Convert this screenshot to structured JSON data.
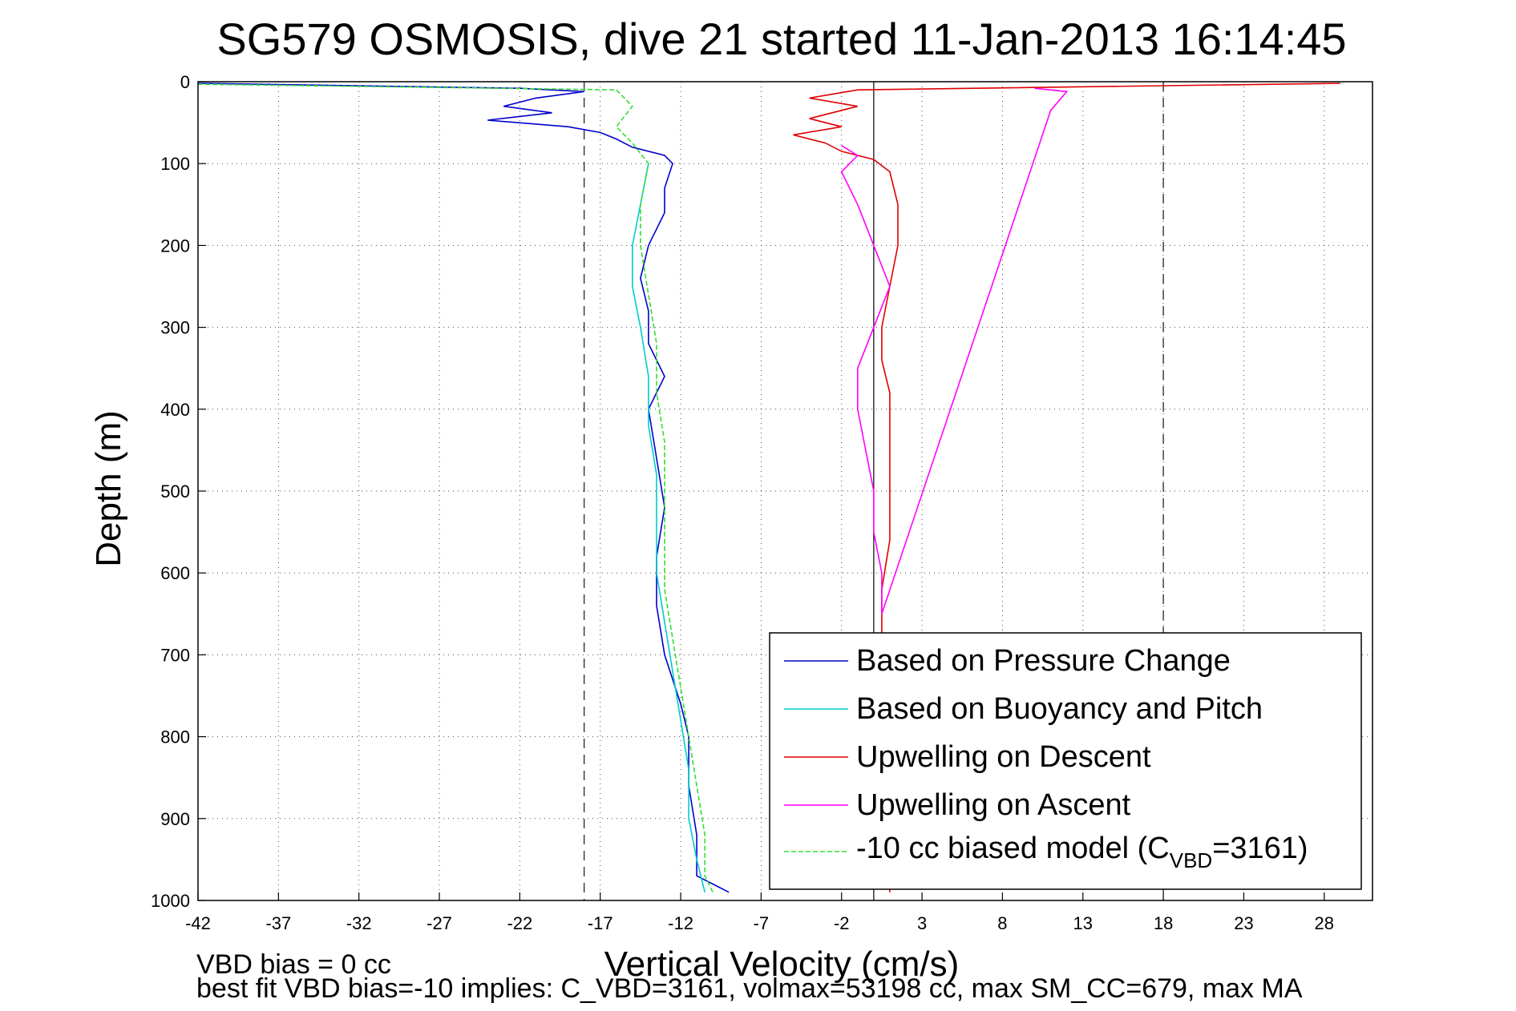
{
  "chart_data": {
    "type": "line",
    "title": "SG579 OSMOSIS, dive 21 started 11-Jan-2013 16:14:45",
    "xlabel": "Vertical Velocity (cm/s)",
    "ylabel": "Depth (m)",
    "xlim": [
      -42,
      31
    ],
    "ylim": [
      0,
      1000
    ],
    "y_reversed": true,
    "xticks": [
      -42,
      -37,
      -32,
      -27,
      -22,
      -17,
      -12,
      -7,
      -2,
      3,
      8,
      13,
      18,
      23,
      28
    ],
    "yticks": [
      0,
      100,
      200,
      300,
      400,
      500,
      600,
      700,
      800,
      900,
      1000
    ],
    "grid": "dotted",
    "legend_position": "bottom-right",
    "reference_lines": {
      "dashed_x": [
        -18,
        18
      ],
      "solid_x": [
        0
      ]
    },
    "series": [
      {
        "name": "Based on Pressure Change",
        "color": "#0000cc",
        "points": [
          [
            -42,
            2
          ],
          [
            -22,
            8
          ],
          [
            -18,
            12
          ],
          [
            -21,
            20
          ],
          [
            -23,
            30
          ],
          [
            -20,
            38
          ],
          [
            -24,
            47
          ],
          [
            -19,
            55
          ],
          [
            -17,
            62
          ],
          [
            -16,
            70
          ],
          [
            -15,
            80
          ],
          [
            -13,
            90
          ],
          [
            -12.5,
            100
          ],
          [
            -13,
            130
          ],
          [
            -13,
            160
          ],
          [
            -14,
            200
          ],
          [
            -14.5,
            240
          ],
          [
            -14,
            280
          ],
          [
            -14,
            320
          ],
          [
            -13,
            360
          ],
          [
            -14,
            400
          ],
          [
            -13.5,
            460
          ],
          [
            -13,
            520
          ],
          [
            -13.5,
            580
          ],
          [
            -13.5,
            640
          ],
          [
            -13,
            700
          ],
          [
            -12,
            760
          ],
          [
            -11.5,
            800
          ],
          [
            -11.5,
            860
          ],
          [
            -11,
            920
          ],
          [
            -11,
            970
          ],
          [
            -9,
            990
          ]
        ]
      },
      {
        "name": "Based on Buoyancy and Pitch",
        "color": "#00cccc",
        "points": [
          [
            -14,
            100
          ],
          [
            -14.5,
            150
          ],
          [
            -15,
            200
          ],
          [
            -15,
            250
          ],
          [
            -14.5,
            300
          ],
          [
            -14,
            360
          ],
          [
            -14,
            420
          ],
          [
            -13.5,
            480
          ],
          [
            -13.5,
            540
          ],
          [
            -13.5,
            600
          ],
          [
            -13,
            660
          ],
          [
            -12.5,
            720
          ],
          [
            -12,
            780
          ],
          [
            -11.5,
            840
          ],
          [
            -11.5,
            900
          ],
          [
            -11,
            950
          ],
          [
            -10.5,
            990
          ]
        ]
      },
      {
        "name": "Upwelling on Descent",
        "color": "#e00000",
        "points": [
          [
            29,
            2
          ],
          [
            -1,
            10
          ],
          [
            -4,
            20
          ],
          [
            -1,
            30
          ],
          [
            -4,
            45
          ],
          [
            -2,
            55
          ],
          [
            -5,
            65
          ],
          [
            -3,
            75
          ],
          [
            -2,
            85
          ],
          [
            0,
            95
          ],
          [
            1,
            110
          ],
          [
            1.5,
            150
          ],
          [
            1.5,
            200
          ],
          [
            1,
            250
          ],
          [
            0.5,
            300
          ],
          [
            0.5,
            340
          ],
          [
            1,
            380
          ],
          [
            1,
            440
          ],
          [
            1,
            500
          ],
          [
            1,
            560
          ],
          [
            0.5,
            620
          ],
          [
            0.5,
            680
          ],
          [
            1,
            990
          ]
        ]
      },
      {
        "name": "Upwelling on Ascent",
        "color": "#ff00ff",
        "points": [
          [
            -2,
            78
          ],
          [
            -1,
            90
          ],
          [
            -2,
            110
          ],
          [
            -1,
            150
          ],
          [
            0,
            200
          ],
          [
            1,
            250
          ],
          [
            0,
            300
          ],
          [
            -1,
            350
          ],
          [
            -1,
            400
          ],
          [
            -0.5,
            450
          ],
          [
            0,
            500
          ],
          [
            0,
            550
          ],
          [
            0.5,
            600
          ],
          [
            0.5,
            650
          ],
          [
            11,
            35
          ],
          [
            12,
            12
          ],
          [
            10,
            8
          ]
        ]
      },
      {
        "name": "-10 cc biased model (C_VBD=3161)",
        "color": "#33dd33",
        "points": [
          [
            -42,
            3
          ],
          [
            -16,
            10
          ],
          [
            -15,
            30
          ],
          [
            -16,
            55
          ],
          [
            -15,
            75
          ],
          [
            -14,
            100
          ],
          [
            -14.5,
            150
          ],
          [
            -14.5,
            200
          ],
          [
            -14,
            260
          ],
          [
            -13.5,
            320
          ],
          [
            -13.5,
            380
          ],
          [
            -13,
            440
          ],
          [
            -13,
            500
          ],
          [
            -13,
            560
          ],
          [
            -13,
            620
          ],
          [
            -12.5,
            680
          ],
          [
            -12,
            740
          ],
          [
            -11.5,
            800
          ],
          [
            -11,
            860
          ],
          [
            -10.5,
            920
          ],
          [
            -10.5,
            970
          ],
          [
            -10,
            990
          ]
        ]
      }
    ],
    "legend": {
      "entries": [
        "Based on Pressure Change",
        "Based on Buoyancy and Pitch",
        "Upwelling on Descent",
        "Upwelling on Ascent"
      ],
      "last_entry_prefix": "-10 cc biased model (C",
      "last_entry_subscript": "VBD",
      "last_entry_suffix": "=3161)"
    },
    "footer": {
      "line1": "VBD bias = 0 cc",
      "line2": "best fit VBD bias=-10 implies: C_VBD=3161, volmax=53198 cc, max SM_CC=679, max MA"
    }
  }
}
